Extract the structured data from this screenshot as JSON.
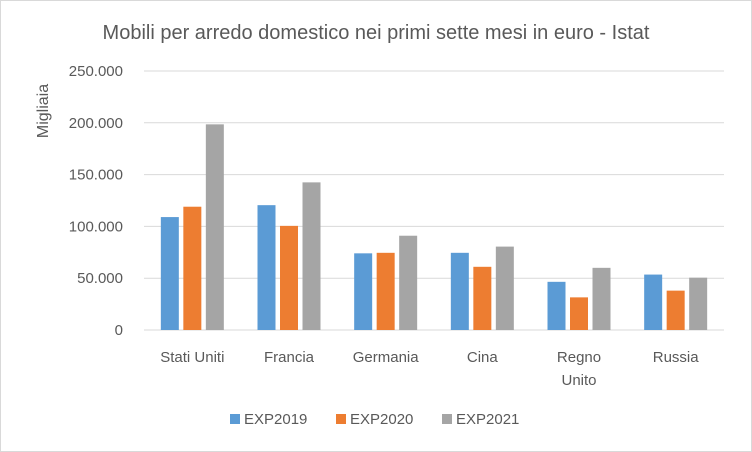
{
  "chart_data": {
    "type": "bar",
    "title": "Mobili per arredo domestico nei primi sette mesi in euro - Istat",
    "ylabel": "Migliaia",
    "xlabel": "",
    "categories": [
      [
        "Stati Uniti"
      ],
      [
        "Francia"
      ],
      [
        "Germania"
      ],
      [
        "Cina"
      ],
      [
        "Regno",
        "Unito"
      ],
      [
        "Russia"
      ]
    ],
    "series": [
      {
        "name": "EXP2019",
        "color": "#5b9bd5",
        "values": [
          109000,
          120500,
          74000,
          74500,
          46500,
          53500
        ]
      },
      {
        "name": "EXP2020",
        "color": "#ed7d31",
        "values": [
          119000,
          100500,
          74500,
          61000,
          31500,
          38000
        ]
      },
      {
        "name": "EXP2021",
        "color": "#a5a5a5",
        "values": [
          198500,
          142500,
          91000,
          80500,
          60000,
          50500
        ]
      }
    ],
    "ylim": [
      0,
      250000
    ],
    "yticks": [
      "0",
      "50.000",
      "100.000",
      "150.000",
      "200.000",
      "250.000"
    ],
    "grid": true,
    "legend_position": "bottom"
  }
}
